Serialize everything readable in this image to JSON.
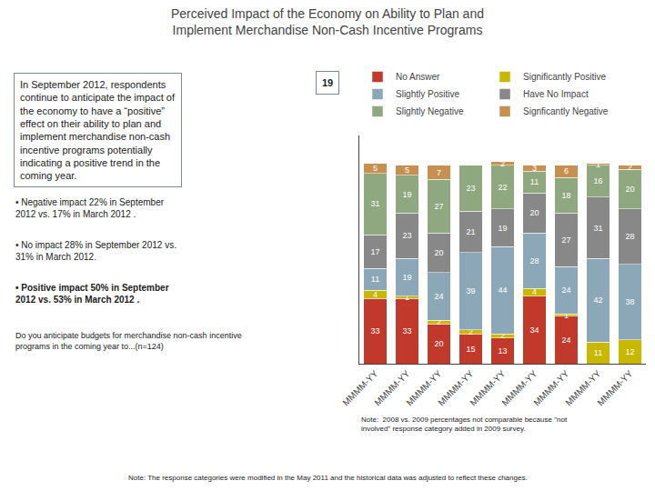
{
  "chart_data": {
    "type": "bar",
    "title": "Perceived Impact of the Economy on Ability to Plan and\nImplement Merchandise Non-Cash Incentive Programs",
    "categories": [
      "MMMM-YY",
      "MMMM-YY",
      "MMMM-YY",
      "MMMM-YY",
      "MMMM-YY",
      "MMMM-YY",
      "MMMM-YY",
      "MMMM-YY",
      "MMMM-YY"
    ],
    "series": [
      {
        "name": "No Answer",
        "color": "#c0392b",
        "values": [
          33,
          33,
          20,
          15,
          13,
          34,
          24,
          0,
          0
        ]
      },
      {
        "name": "Significantly Positive",
        "color": "#c8b800",
        "values": [
          4,
          1,
          2,
          2,
          2,
          4,
          1,
          11,
          12
        ]
      },
      {
        "name": "Slightly Positive",
        "color": "#8ca8b8",
        "values": [
          11,
          19,
          24,
          39,
          44,
          28,
          24,
          42,
          38
        ]
      },
      {
        "name": "Have No Impact",
        "color": "#888888",
        "values": [
          17,
          23,
          20,
          21,
          19,
          20,
          27,
          31,
          28
        ]
      },
      {
        "name": "Slightly Negative",
        "color": "#90a880",
        "values": [
          31,
          19,
          27,
          23,
          22,
          11,
          18,
          16,
          20
        ]
      },
      {
        "name": "Signficantly Negative",
        "color": "#c89050",
        "values": [
          5,
          5,
          7,
          0,
          2,
          3,
          6,
          1,
          2
        ]
      }
    ],
    "stacked": true,
    "data_labels": true,
    "ylim": [
      0,
      115
    ],
    "yticks": [],
    "tick_labels": "x",
    "grid": false,
    "legend": "top",
    "annotations": [
      "19",
      "In September 2012, respondents\ncontinue to anticipate the impact of\nthe economy to have a “positive”\neffect on their ability to plan and\nimplement merchandise non-cash\nincentive programs potentially\nindicating a positive trend in the\ncoming year.",
      "• Negative impact 22% in September\n2012 vs. 17% in March 2012 .",
      "• No impact 28% in September 2012 vs.\n31% in March 2012.",
      "• Positive impact 50% in September\n2012 vs. 53% in March 2012 .",
      "Do you anticipate budgets for merchandise non-cash incentive\nprograms in the coming year to...(n=124)",
      "Note:  2008 vs. 2009 percentages not comparable because \"not\ninvolved\" response category added in 2009 survey.",
      "Note: The response categories were modified in the May 2011 and the historical data was adjusted to reflect these changes."
    ]
  }
}
